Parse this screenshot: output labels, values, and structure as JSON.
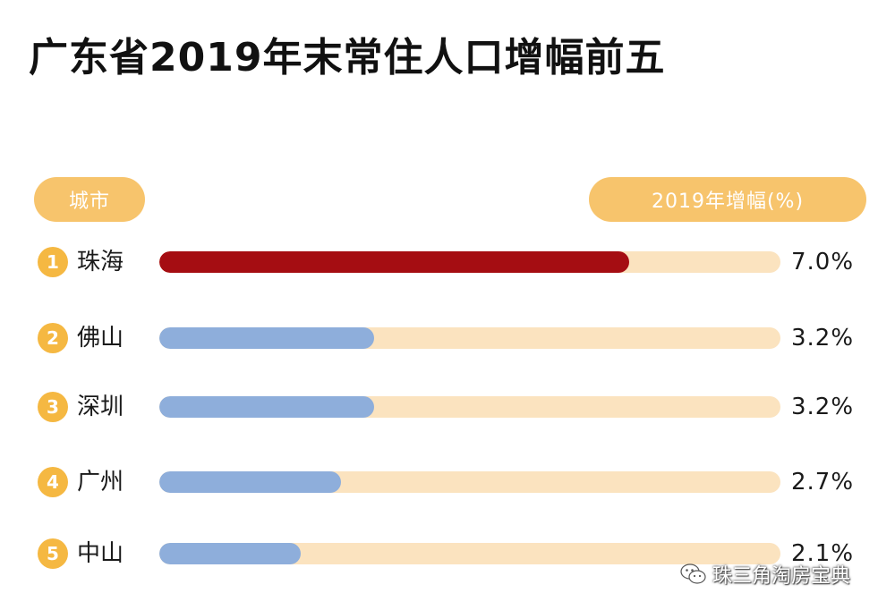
{
  "title": "广东省2019年末常住人口增幅前五",
  "header": {
    "city_label": "城市",
    "growth_label": "2019年增幅(%)"
  },
  "colors": {
    "highlight": "#a50d12",
    "bar": "#8eaedb",
    "track": "#fbe3bf",
    "pill": "#f7c46c",
    "rank": "#f5b842"
  },
  "chart_data": {
    "type": "bar",
    "orientation": "horizontal",
    "categories": [
      "珠海",
      "佛山",
      "深圳",
      "广州",
      "中山"
    ],
    "ranks": [
      "1",
      "2",
      "3",
      "4",
      "5"
    ],
    "values": [
      7.0,
      3.2,
      3.2,
      2.7,
      2.1
    ],
    "value_labels": [
      "7.0%",
      "3.2%",
      "3.2%",
      "2.7%",
      "2.1%"
    ],
    "title": "广东省2019年末常住人口增幅前五",
    "xlabel": "2019年增幅(%)",
    "ylabel": "城市",
    "xlim": [
      0,
      9.25
    ],
    "highlight_index": 0
  },
  "watermark": {
    "icon": "wechat-icon",
    "text": "珠三角淘房宝典"
  }
}
